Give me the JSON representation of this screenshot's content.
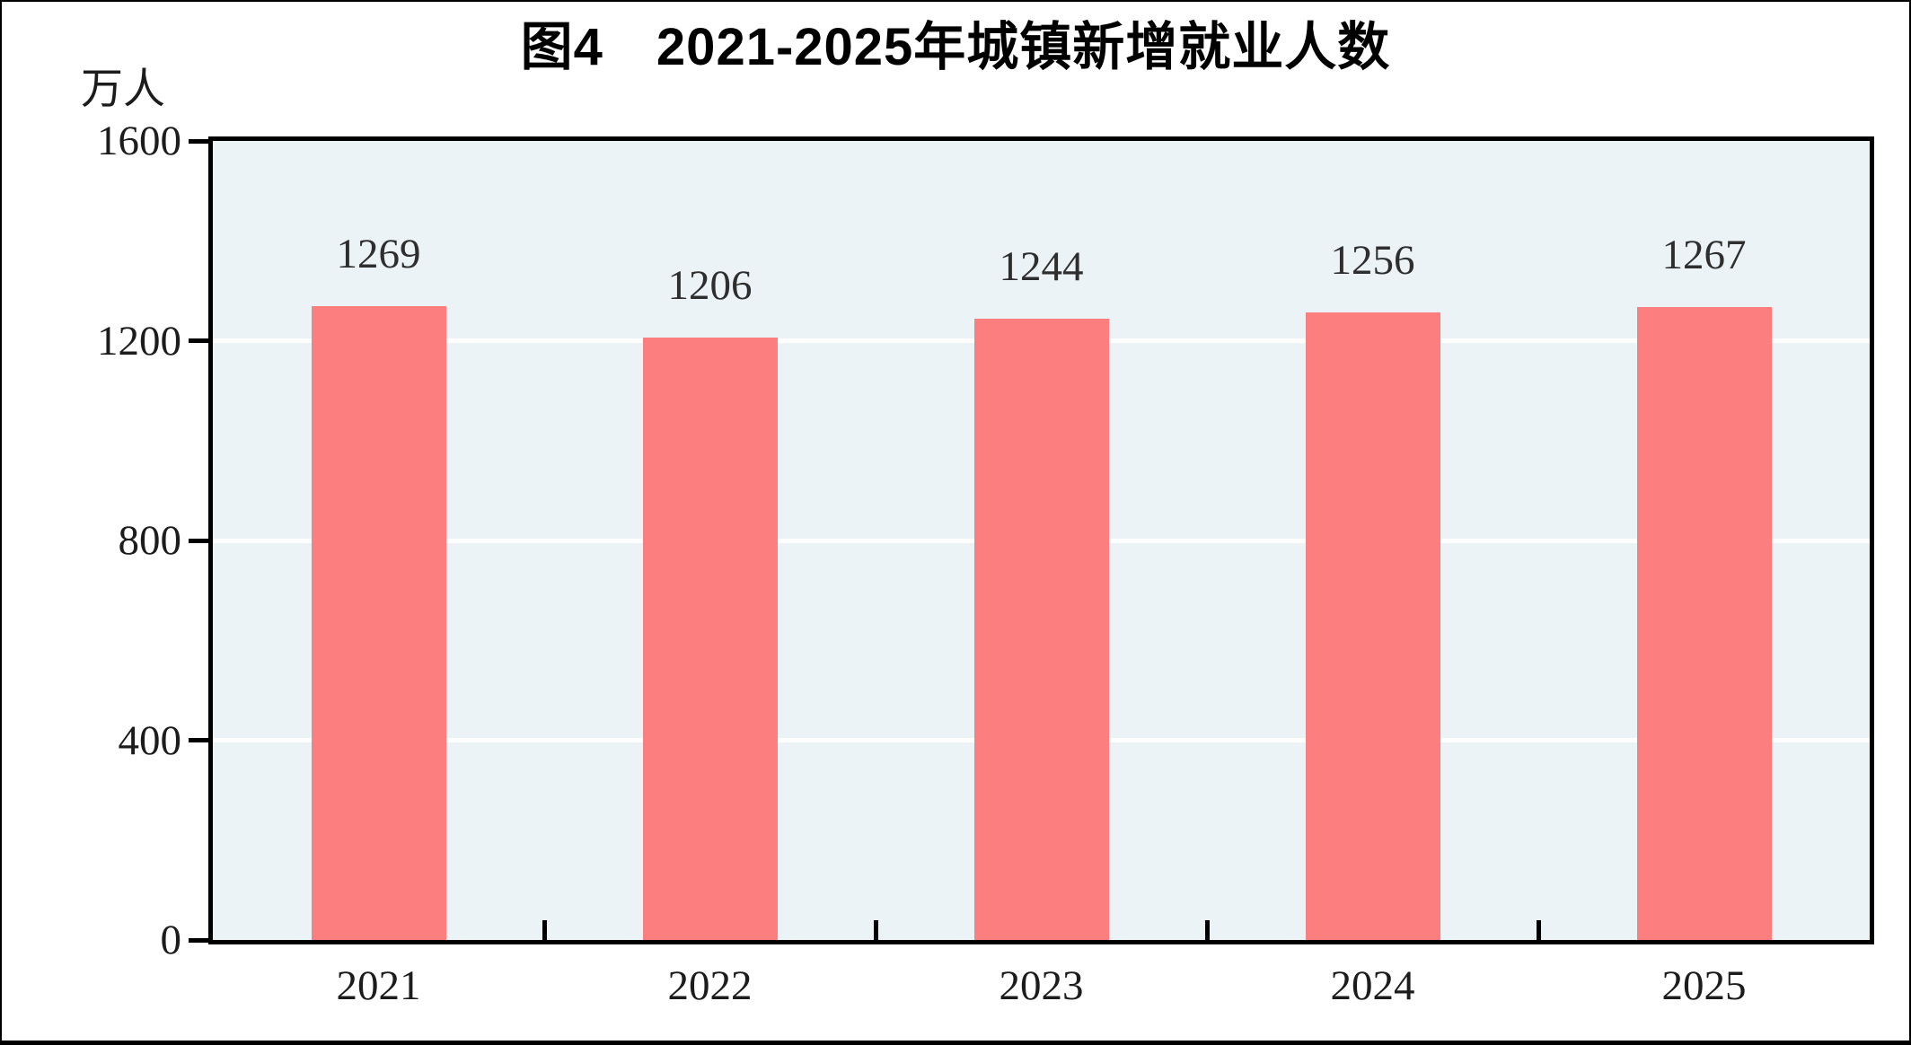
{
  "window": {
    "background": "#ffffff",
    "frame_border_color": "#000000"
  },
  "chart_data": {
    "type": "bar",
    "title": "图4　2021-2025年城镇新增就业人数",
    "unit_label": "万人",
    "categories": [
      "2021",
      "2022",
      "2023",
      "2024",
      "2025"
    ],
    "values": [
      1269,
      1206,
      1244,
      1256,
      1267
    ],
    "data_labels": [
      "1269",
      "1206",
      "1244",
      "1256",
      "1267"
    ],
    "xlabel": "",
    "ylabel": "万人",
    "ylim": [
      0,
      1600
    ],
    "yticks": [
      0,
      400,
      800,
      1200,
      1600
    ],
    "grid": "horizontal-white-gridlines",
    "legend": "none",
    "colors": {
      "bar": "#FC7E7E",
      "plot_background": "#EBF3F6",
      "gridline": "#FFFFFF",
      "axis": "#000000",
      "title_text": "#000000",
      "label_text": "#2E2E2E"
    }
  }
}
